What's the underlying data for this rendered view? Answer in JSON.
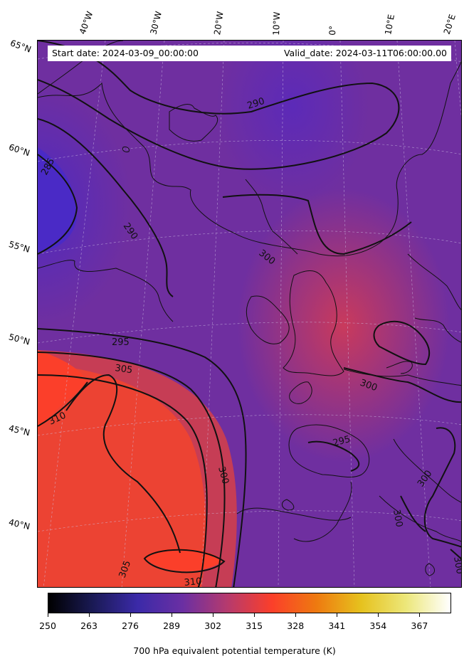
{
  "header": {
    "start_date": "Start date: 2024-03-09_00:00:00",
    "valid_date": "Valid_date: 2024-03-11T06:00:00.00"
  },
  "longitude_labels": [
    "40°W",
    "30°W",
    "20°W",
    "10°W",
    "0°",
    "10°E",
    "20°E"
  ],
  "latitude_labels": [
    "65°N",
    "60°N",
    "55°N",
    "50°N",
    "45°N",
    "40°N"
  ],
  "contour_labels": [
    "290",
    "285",
    "290",
    "300",
    "295",
    "305",
    "310",
    "300",
    "295",
    "300",
    "300",
    "300",
    "305",
    "310",
    "300"
  ],
  "colorbar": {
    "label": "700 hPa equivalent potential temperature (K)",
    "ticks": [
      "250",
      "263",
      "276",
      "289",
      "302",
      "315",
      "328",
      "341",
      "354",
      "367"
    ],
    "colormap": "CMRmap",
    "colors": [
      "#000000",
      "#1a1a55",
      "#3b2aa8",
      "#6a2fa3",
      "#b53a6e",
      "#fb3f2a",
      "#ee7a10",
      "#e6c21e",
      "#ece77a",
      "#ffffff"
    ]
  }
}
